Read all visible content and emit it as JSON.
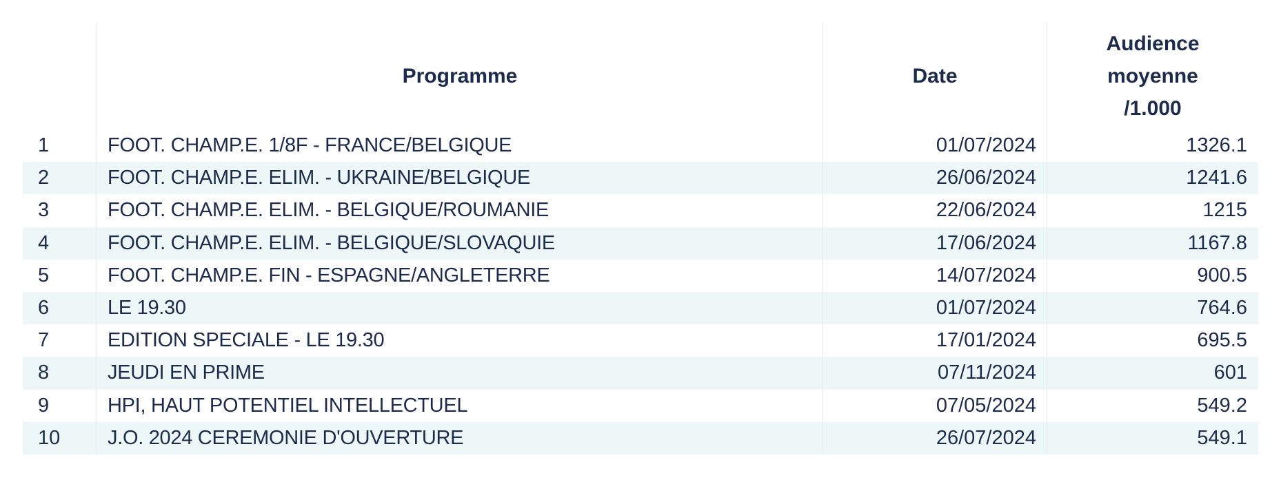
{
  "chart_data": {
    "type": "table",
    "columns": {
      "rank": "",
      "programme": "Programme",
      "date": "Date",
      "audience": "Audience\nmoyenne\n/1.000"
    },
    "rows": [
      {
        "rank": "1",
        "programme": "FOOT. CHAMP.E. 1/8F - FRANCE/BELGIQUE",
        "date": "01/07/2024",
        "audience": "1326.1"
      },
      {
        "rank": "2",
        "programme": "FOOT. CHAMP.E. ELIM. - UKRAINE/BELGIQUE",
        "date": "26/06/2024",
        "audience": "1241.6"
      },
      {
        "rank": "3",
        "programme": "FOOT. CHAMP.E. ELIM. - BELGIQUE/ROUMANIE",
        "date": "22/06/2024",
        "audience": "1215"
      },
      {
        "rank": "4",
        "programme": "FOOT. CHAMP.E. ELIM. - BELGIQUE/SLOVAQUIE",
        "date": "17/06/2024",
        "audience": "1167.8"
      },
      {
        "rank": "5",
        "programme": "FOOT. CHAMP.E. FIN - ESPAGNE/ANGLETERRE",
        "date": "14/07/2024",
        "audience": "900.5"
      },
      {
        "rank": "6",
        "programme": "LE 19.30",
        "date": "01/07/2024",
        "audience": "764.6"
      },
      {
        "rank": "7",
        "programme": "EDITION SPECIALE - LE 19.30",
        "date": "17/01/2024",
        "audience": "695.5"
      },
      {
        "rank": "8",
        "programme": "JEUDI EN PRIME",
        "date": "07/11/2024",
        "audience": "601"
      },
      {
        "rank": "9",
        "programme": "HPI, HAUT POTENTIEL INTELLECTUEL",
        "date": "07/05/2024",
        "audience": "549.2"
      },
      {
        "rank": "10",
        "programme": "J.O. 2024 CEREMONIE D'OUVERTURE",
        "date": "26/07/2024",
        "audience": "549.1"
      }
    ]
  },
  "colors": {
    "text": "#1c2b4b",
    "stripe": "#edf7f7",
    "divider": "#e6e7ea",
    "background": "#ffffff"
  }
}
